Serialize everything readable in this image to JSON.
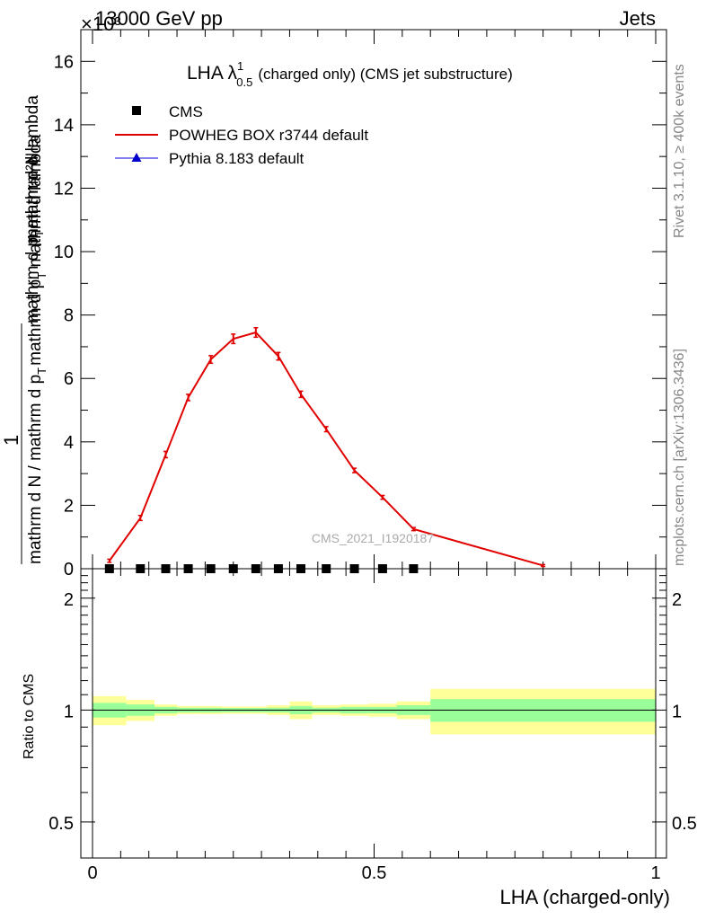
{
  "header": {
    "energy_label": "13000 GeV pp",
    "process_label": "Jets",
    "exponent_label": "×10³"
  },
  "side_labels": {
    "rivet": "Rivet 3.1.10, ≥ 400k events",
    "mcplots": "mcplots.cern.ch [arXiv:1306.3436]"
  },
  "colors": {
    "data": "#000000",
    "powheg": "#e00000",
    "pythia": "#0000cc",
    "band_inner": "#99ff99",
    "band_outer": "#ffff99"
  },
  "chart_data": [
    {
      "type": "line",
      "title": "LHA λ",
      "title_sup": "1",
      "title_sub": "0.5",
      "title_rest": "(charged only) (CMS jet substructure)",
      "watermark": "CMS_2021_I1920187",
      "ylabel_numerator": "mathrm d²N",
      "ylabel_one": "1",
      "ylabel_den": "mathrm d N / mathrm d p",
      "ylabel_den_sub": "T",
      "ylabel_den2": "mathrm d p",
      "ylabel_den2_sub": "T",
      "ylabel_den3": " mathrm d lambda",
      "ylabel_mid": "mathrm d p",
      "ylabel_mid_sub": "T",
      "ylabel_mid_rest": "mathrm d lambda",
      "xlim": [
        0,
        1
      ],
      "ylim": [
        0,
        17
      ],
      "y_scale_note": "values in units of 10^3",
      "yticks": [
        0,
        2,
        4,
        6,
        8,
        10,
        12,
        14,
        16
      ],
      "ytick_labels": [
        "0",
        "2",
        "4",
        "6",
        "8",
        "10",
        "12",
        "14",
        "16"
      ],
      "legend": [
        {
          "label": "CMS",
          "marker": "square"
        },
        {
          "label": "POWHEG BOX r3744 default",
          "marker": "line"
        },
        {
          "label": "Pythia 8.183 default",
          "marker": "triangle"
        }
      ],
      "series": [
        {
          "name": "CMS",
          "x": [
            0.03,
            0.085,
            0.13,
            0.17,
            0.21,
            0.25,
            0.29,
            0.33,
            0.37,
            0.415,
            0.465,
            0.515,
            0.57
          ],
          "values": [
            0,
            0,
            0,
            0,
            0,
            0,
            0,
            0,
            0,
            0,
            0,
            0,
            0
          ]
        },
        {
          "name": "POWHEG BOX r3744 default",
          "x": [
            0.03,
            0.085,
            0.13,
            0.17,
            0.21,
            0.25,
            0.29,
            0.33,
            0.37,
            0.415,
            0.465,
            0.515,
            0.57,
            0.8
          ],
          "values": [
            0.25,
            1.6,
            3.6,
            5.4,
            6.6,
            7.25,
            7.45,
            6.7,
            5.5,
            4.4,
            3.1,
            2.25,
            1.25,
            0.1
          ],
          "errors": [
            0.05,
            0.08,
            0.1,
            0.1,
            0.12,
            0.15,
            0.15,
            0.12,
            0.1,
            0.08,
            0.07,
            0.06,
            0.05,
            0.03
          ]
        },
        {
          "name": "Pythia 8.183 default",
          "x": [],
          "values": []
        }
      ]
    },
    {
      "type": "area",
      "ylabel": "Ratio to CMS",
      "xlabel": "LHA (charged-only)",
      "xlim": [
        0,
        1
      ],
      "ylim": [
        0.4,
        2.4
      ],
      "y_scale": "log",
      "yticks": [
        0.5,
        1,
        2
      ],
      "ytick_labels": [
        "0.5",
        "1",
        "2"
      ],
      "xticks": [
        0,
        0.5,
        1
      ],
      "xtick_labels": [
        "0",
        "0.5",
        "1"
      ],
      "reference_line": 1,
      "bins": [
        {
          "lo": 0.0,
          "hi": 0.06,
          "inner": [
            0.955,
            1.045
          ],
          "outer": [
            0.91,
            1.09
          ]
        },
        {
          "lo": 0.06,
          "hi": 0.11,
          "inner": [
            0.965,
            1.035
          ],
          "outer": [
            0.935,
            1.065
          ]
        },
        {
          "lo": 0.11,
          "hi": 0.15,
          "inner": [
            0.98,
            1.02
          ],
          "outer": [
            0.965,
            1.035
          ]
        },
        {
          "lo": 0.15,
          "hi": 0.19,
          "inner": [
            0.985,
            1.015
          ],
          "outer": [
            0.975,
            1.025
          ]
        },
        {
          "lo": 0.19,
          "hi": 0.23,
          "inner": [
            0.985,
            1.015
          ],
          "outer": [
            0.975,
            1.025
          ]
        },
        {
          "lo": 0.23,
          "hi": 0.27,
          "inner": [
            0.987,
            1.013
          ],
          "outer": [
            0.978,
            1.022
          ]
        },
        {
          "lo": 0.27,
          "hi": 0.31,
          "inner": [
            0.987,
            1.013
          ],
          "outer": [
            0.978,
            1.022
          ]
        },
        {
          "lo": 0.31,
          "hi": 0.35,
          "inner": [
            0.985,
            1.015
          ],
          "outer": [
            0.97,
            1.03
          ]
        },
        {
          "lo": 0.35,
          "hi": 0.39,
          "inner": [
            0.975,
            1.025
          ],
          "outer": [
            0.945,
            1.055
          ]
        },
        {
          "lo": 0.39,
          "hi": 0.44,
          "inner": [
            0.985,
            1.015
          ],
          "outer": [
            0.97,
            1.03
          ]
        },
        {
          "lo": 0.44,
          "hi": 0.49,
          "inner": [
            0.98,
            1.02
          ],
          "outer": [
            0.965,
            1.035
          ]
        },
        {
          "lo": 0.49,
          "hi": 0.54,
          "inner": [
            0.98,
            1.02
          ],
          "outer": [
            0.96,
            1.04
          ]
        },
        {
          "lo": 0.54,
          "hi": 0.6,
          "inner": [
            0.97,
            1.03
          ],
          "outer": [
            0.945,
            1.055
          ]
        },
        {
          "lo": 0.6,
          "hi": 1.0,
          "inner": [
            0.93,
            1.07
          ],
          "outer": [
            0.86,
            1.14
          ]
        }
      ]
    }
  ]
}
